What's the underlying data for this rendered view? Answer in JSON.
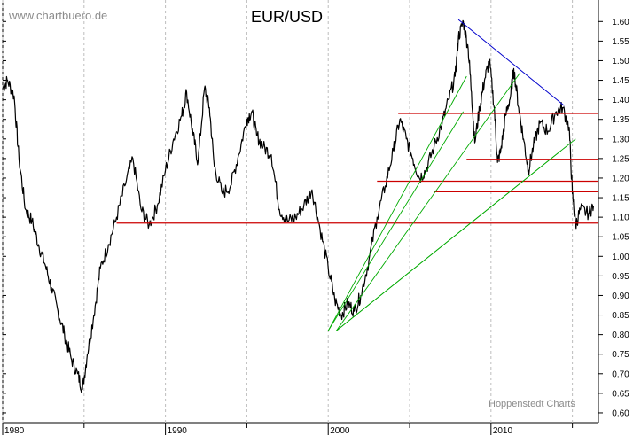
{
  "watermark": "www.chartbuero.de",
  "credit": "Hoppenstedt Charts",
  "chart_data": {
    "type": "line",
    "title": "EUR/USD",
    "xlabel": "",
    "ylabel": "",
    "xlim": [
      1980,
      2016.6
    ],
    "ylim": [
      0.575,
      1.655
    ],
    "x_ticks": [
      1980,
      1990,
      2000,
      2010
    ],
    "x_minor_ticks": [
      1985,
      1995,
      2005,
      2015
    ],
    "y_ticks": [
      0.6,
      0.65,
      0.7,
      0.75,
      0.8,
      0.85,
      0.9,
      0.95,
      1.0,
      1.05,
      1.1,
      1.15,
      1.2,
      1.25,
      1.3,
      1.35,
      1.4,
      1.45,
      1.5,
      1.55,
      1.6
    ],
    "y_tick_labels": [
      "0.60",
      "0.65",
      "0.70",
      "0.75",
      "0.80",
      "0.85",
      "0.90",
      "0.95",
      "1.00",
      "1.05",
      "1.10",
      "1.15",
      "1.20",
      "1.25",
      "1.30",
      "1.35",
      "1.40",
      "1.45",
      "1.50",
      "1.55",
      "1.60"
    ],
    "grid": "vertical dashed at decade and mid-decade ticks",
    "series": [
      {
        "color": "#000000",
        "x": [
          1980.0,
          1980.3,
          1980.7,
          1981.0,
          1981.4,
          1981.8,
          1982.2,
          1982.6,
          1983.0,
          1983.4,
          1983.8,
          1984.2,
          1984.6,
          1984.9,
          1985.2,
          1985.6,
          1986.0,
          1986.5,
          1987.0,
          1987.5,
          1988.0,
          1988.5,
          1989.0,
          1989.5,
          1990.0,
          1990.5,
          1991.0,
          1991.3,
          1991.7,
          1992.0,
          1992.4,
          1992.7,
          1993.0,
          1993.5,
          1994.0,
          1994.5,
          1995.0,
          1995.3,
          1995.6,
          1996.0,
          1996.5,
          1997.0,
          1997.5,
          1998.0,
          1998.5,
          1999.0,
          1999.5,
          2000.0,
          2000.4,
          2000.8,
          2001.2,
          2001.6,
          2002.0,
          2002.5,
          2003.0,
          2003.5,
          2004.0,
          2004.4,
          2004.8,
          2005.2,
          2005.6,
          2006.0,
          2006.5,
          2007.0,
          2007.4,
          2007.8,
          2008.0,
          2008.3,
          2008.6,
          2008.8,
          2009.0,
          2009.3,
          2009.6,
          2009.9,
          2010.2,
          2010.4,
          2010.6,
          2010.9,
          2011.2,
          2011.4,
          2011.7,
          2012.0,
          2012.3,
          2012.6,
          2013.0,
          2013.5,
          2014.0,
          2014.4,
          2014.8,
          2015.0,
          2015.2,
          2015.5,
          2016.0,
          2016.3
        ],
        "values": [
          1.43,
          1.45,
          1.41,
          1.25,
          1.12,
          1.09,
          1.03,
          0.98,
          0.92,
          0.86,
          0.8,
          0.74,
          0.7,
          0.66,
          0.75,
          0.85,
          0.97,
          1.03,
          1.1,
          1.18,
          1.25,
          1.12,
          1.08,
          1.13,
          1.22,
          1.3,
          1.36,
          1.42,
          1.31,
          1.24,
          1.43,
          1.38,
          1.23,
          1.16,
          1.18,
          1.26,
          1.35,
          1.37,
          1.31,
          1.28,
          1.26,
          1.12,
          1.09,
          1.1,
          1.13,
          1.17,
          1.07,
          0.97,
          0.89,
          0.85,
          0.88,
          0.86,
          0.9,
          0.99,
          1.1,
          1.18,
          1.27,
          1.35,
          1.3,
          1.25,
          1.2,
          1.22,
          1.28,
          1.34,
          1.4,
          1.46,
          1.56,
          1.6,
          1.53,
          1.42,
          1.29,
          1.38,
          1.45,
          1.5,
          1.38,
          1.24,
          1.27,
          1.36,
          1.41,
          1.48,
          1.38,
          1.3,
          1.22,
          1.28,
          1.34,
          1.32,
          1.37,
          1.38,
          1.33,
          1.16,
          1.08,
          1.12,
          1.11,
          1.13
        ]
      }
    ],
    "annotations": {
      "support_resistance_lines": [
        {
          "color": "#cc0000",
          "x": [
            1987.0,
            2016.6
          ],
          "y": 1.085
        },
        {
          "color": "#cc0000",
          "x": [
            2004.3,
            2016.6
          ],
          "y": 1.365
        },
        {
          "color": "#cc0000",
          "x": [
            2008.5,
            2016.6
          ],
          "y": 1.248
        },
        {
          "color": "#cc0000",
          "x": [
            2003.0,
            2016.6
          ],
          "y": 1.192
        },
        {
          "color": "#cc0000",
          "x": [
            2006.5,
            2016.6
          ],
          "y": 1.165
        }
      ],
      "downtrend_line": {
        "color": "#0000cc",
        "x": [
          2008.0,
          2014.5
        ],
        "y": [
          1.605,
          1.385
        ]
      },
      "fan_lines": [
        {
          "color": "#00aa00",
          "x": [
            2000.0,
            2008.5
          ],
          "y": [
            0.81,
            1.46
          ]
        },
        {
          "color": "#00aa00",
          "x": [
            2000.0,
            2008.3
          ],
          "y": [
            0.81,
            1.37
          ]
        },
        {
          "color": "#00aa00",
          "x": [
            2000.5,
            2011.8
          ],
          "y": [
            0.81,
            1.47
          ]
        },
        {
          "color": "#00aa00",
          "x": [
            2000.5,
            2014.3
          ],
          "y": [
            0.81,
            1.27
          ]
        },
        {
          "color": "#00aa00",
          "x": [
            2000.5,
            2015.2
          ],
          "y": [
            0.81,
            1.3
          ]
        }
      ]
    }
  }
}
